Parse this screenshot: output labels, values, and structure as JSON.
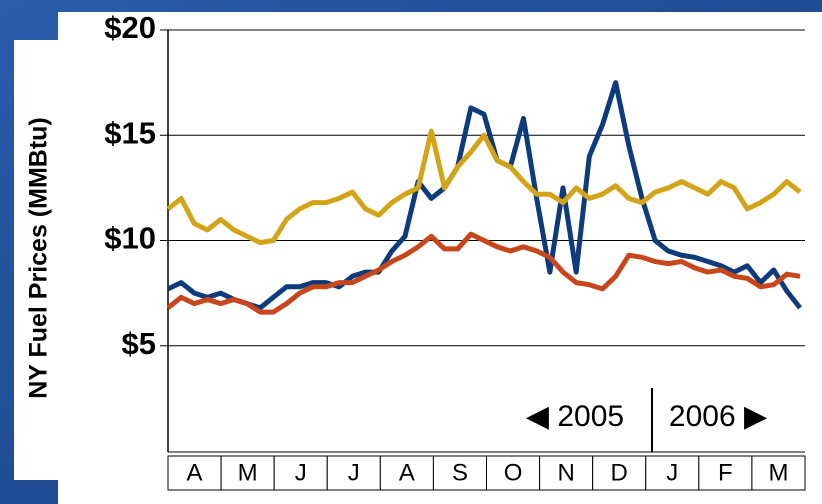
{
  "chart_data": {
    "type": "line",
    "y_label": "NY Fuel Prices (MMBtu)",
    "categories": [
      "A",
      "M",
      "J",
      "J",
      "A",
      "S",
      "O",
      "N",
      "D",
      "J",
      "F",
      "M"
    ],
    "annotations": [
      "◀ 2005",
      "2006 ▶"
    ],
    "x": [
      0,
      0.25,
      0.5,
      0.75,
      1,
      1.25,
      1.5,
      1.75,
      2,
      2.25,
      2.5,
      2.75,
      3,
      3.25,
      3.5,
      3.75,
      4,
      4.25,
      4.5,
      4.75,
      5,
      5.25,
      5.5,
      5.75,
      6,
      6.25,
      6.5,
      6.75,
      7,
      7.25,
      7.5,
      7.75,
      8,
      8.25,
      8.5,
      8.75,
      9,
      9.25,
      9.5,
      9.75,
      10,
      10.25,
      10.5,
      10.75,
      11,
      11.25,
      11.5,
      11.75,
      12
    ],
    "xlim": [
      0,
      12
    ],
    "ylim": [
      0,
      20
    ],
    "yticks": [
      {
        "value": 5,
        "label": "$5"
      },
      {
        "value": 10,
        "label": "$10"
      },
      {
        "value": 15,
        "label": "$15"
      },
      {
        "value": 20,
        "label": "$20"
      }
    ],
    "grid": true,
    "series": [
      {
        "color": "#0d3b7c",
        "values": [
          7.7,
          8.0,
          7.5,
          7.3,
          7.5,
          7.2,
          7.0,
          6.8,
          7.3,
          7.8,
          7.8,
          8.0,
          8.0,
          7.8,
          8.3,
          8.5,
          8.5,
          9.5,
          10.2,
          12.8,
          12.0,
          12.5,
          13.5,
          16.3,
          16.0,
          13.8,
          13.5,
          15.8,
          12.0,
          8.5,
          12.5,
          8.5,
          14.0,
          15.5,
          17.5,
          14.5,
          12.0,
          10.0,
          9.5,
          9.3,
          9.2,
          9.0,
          8.8,
          8.5,
          8.8,
          8.0,
          8.6,
          7.6,
          6.8
        ]
      },
      {
        "color": "#d4a418",
        "values": [
          11.5,
          12.0,
          10.8,
          10.5,
          11.0,
          10.5,
          10.2,
          9.9,
          10.0,
          11.0,
          11.5,
          11.8,
          11.8,
          12.0,
          12.3,
          11.5,
          11.2,
          11.8,
          12.2,
          12.5,
          15.2,
          12.5,
          13.5,
          14.2,
          15.0,
          13.8,
          13.5,
          12.8,
          12.2,
          12.2,
          11.8,
          12.5,
          12.0,
          12.2,
          12.6,
          12.0,
          11.8,
          12.3,
          12.5,
          12.8,
          12.5,
          12.2,
          12.8,
          12.5,
          11.5,
          11.8,
          12.2,
          12.8,
          12.3
        ]
      },
      {
        "color": "#c8461c",
        "values": [
          6.8,
          7.3,
          7.0,
          7.2,
          7.0,
          7.2,
          7.0,
          6.6,
          6.6,
          7.0,
          7.5,
          7.8,
          7.8,
          8.0,
          8.0,
          8.3,
          8.6,
          9.0,
          9.3,
          9.7,
          10.2,
          9.6,
          9.6,
          10.3,
          10.0,
          9.7,
          9.5,
          9.7,
          9.5,
          9.2,
          8.5,
          8.0,
          7.9,
          7.7,
          8.3,
          9.3,
          9.2,
          9.0,
          8.9,
          9.0,
          8.7,
          8.5,
          8.6,
          8.3,
          8.2,
          7.8,
          7.9,
          8.4,
          8.3
        ]
      }
    ]
  }
}
